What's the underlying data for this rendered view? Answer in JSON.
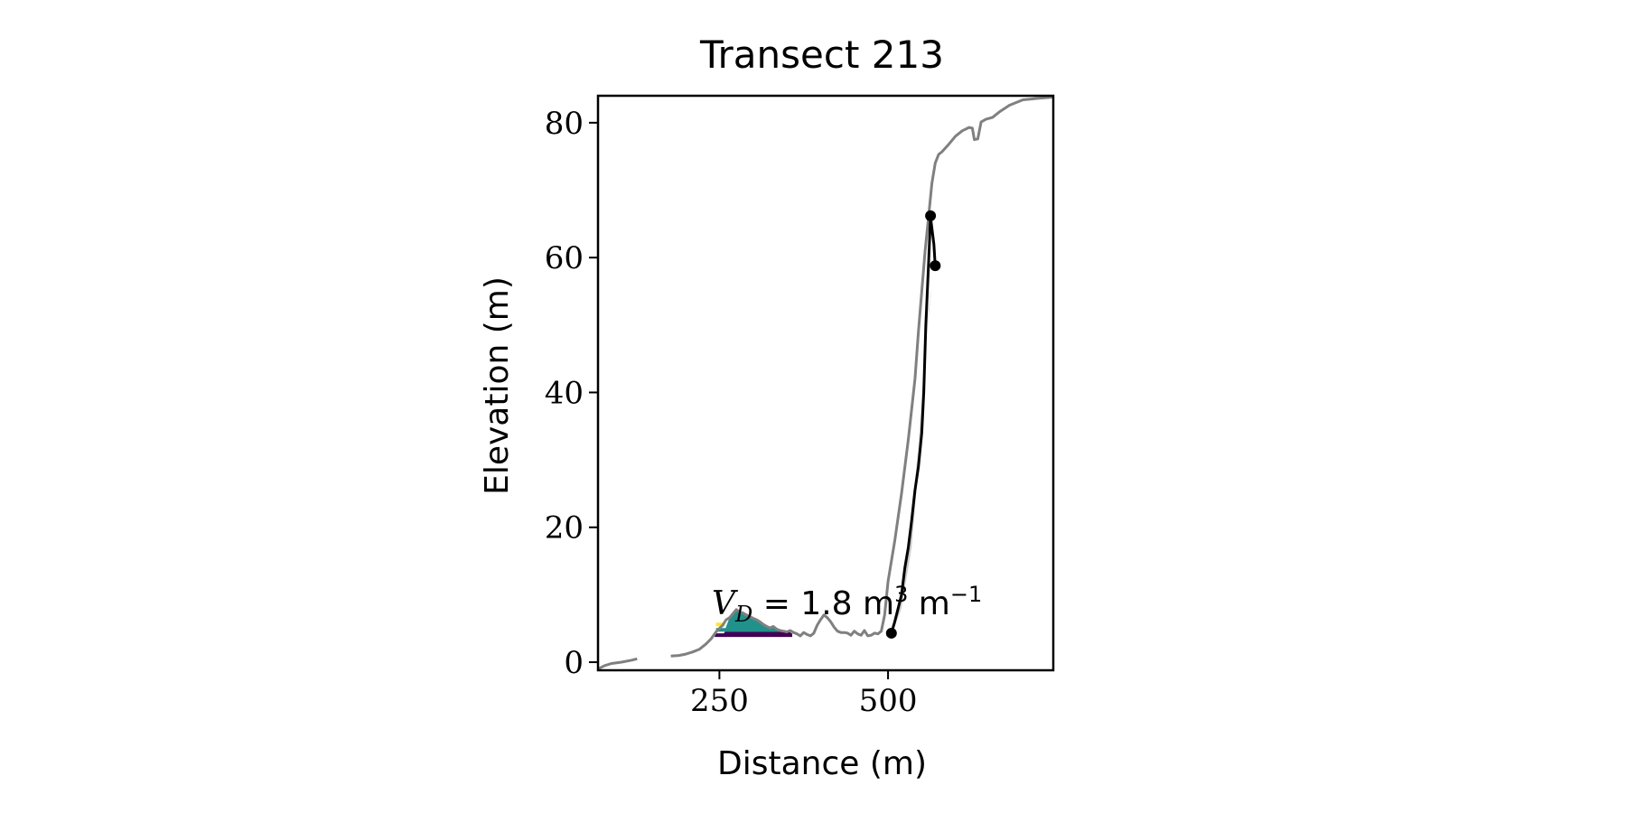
{
  "chart_data": {
    "type": "line",
    "title": "Transect 213",
    "xlabel": "Distance (m)",
    "ylabel": "Elevation (m)",
    "xlim": [
      70,
      745
    ],
    "ylim": [
      -1.2,
      84
    ],
    "xticks": [
      250,
      500
    ],
    "xtick_labels": [
      "250",
      "500"
    ],
    "yticks": [
      0,
      20,
      40,
      60,
      80
    ],
    "ytick_labels": [
      "0",
      "20",
      "40",
      "60",
      "80"
    ],
    "grid": false,
    "legend": "none",
    "annotation": {
      "text_main": "V",
      "text_sub": "D",
      "text_rest": " = 1.8 m",
      "text_sup1": "3",
      "text_m": " m",
      "text_sup2": "−1",
      "x": 243,
      "y": 7
    },
    "profile": {
      "color": "#808080",
      "segments": [
        [
          [
            70,
            -1
          ],
          [
            80,
            -0.5
          ],
          [
            90,
            -0.2
          ],
          [
            105,
            0
          ],
          [
            120,
            0.3
          ],
          [
            128,
            0.5
          ]
        ],
        [
          [
            178,
            0.9
          ],
          [
            190,
            1
          ],
          [
            200,
            1.2
          ],
          [
            210,
            1.5
          ],
          [
            220,
            1.9
          ],
          [
            230,
            2.7
          ],
          [
            238,
            3.5
          ],
          [
            245,
            4.5
          ],
          [
            250,
            5
          ],
          [
            255,
            5.5
          ],
          [
            260,
            6.3
          ],
          [
            265,
            6.6
          ],
          [
            270,
            7.2
          ],
          [
            275,
            7.8
          ],
          [
            280,
            7.4
          ],
          [
            285,
            7.3
          ],
          [
            290,
            7
          ],
          [
            295,
            6.8
          ],
          [
            300,
            6.5
          ],
          [
            305,
            6.3
          ],
          [
            310,
            6
          ],
          [
            315,
            5.6
          ],
          [
            320,
            5.3
          ],
          [
            325,
            5.1
          ],
          [
            330,
            5.3
          ],
          [
            335,
            4.9
          ],
          [
            340,
            4.7
          ],
          [
            345,
            4.6
          ],
          [
            350,
            4.5
          ],
          [
            355,
            4.7
          ],
          [
            360,
            4.4
          ],
          [
            365,
            4.2
          ],
          [
            370,
            3.9
          ],
          [
            375,
            4.4
          ],
          [
            380,
            4.1
          ],
          [
            385,
            3.9
          ],
          [
            390,
            4.3
          ],
          [
            395,
            5.5
          ],
          [
            400,
            6.3
          ],
          [
            405,
            7
          ],
          [
            410,
            6.6
          ],
          [
            415,
            6
          ],
          [
            420,
            5.2
          ],
          [
            425,
            4.6
          ],
          [
            430,
            4.4
          ],
          [
            435,
            4.4
          ],
          [
            440,
            4.3
          ],
          [
            445,
            4
          ],
          [
            450,
            4.6
          ],
          [
            455,
            4.2
          ],
          [
            460,
            4
          ],
          [
            465,
            4.7
          ],
          [
            470,
            3.9
          ],
          [
            475,
            4
          ],
          [
            480,
            4.3
          ],
          [
            485,
            4.2
          ],
          [
            490,
            4.6
          ],
          [
            495,
            7
          ],
          [
            500,
            12
          ],
          [
            510,
            18
          ],
          [
            520,
            25
          ],
          [
            530,
            33
          ],
          [
            540,
            42
          ],
          [
            545,
            49
          ],
          [
            550,
            55
          ],
          [
            555,
            61
          ],
          [
            560,
            66
          ],
          [
            565,
            71
          ],
          [
            570,
            74
          ],
          [
            575,
            75.3
          ],
          [
            580,
            75.7
          ],
          [
            590,
            76.8
          ],
          [
            600,
            78
          ],
          [
            610,
            78.8
          ],
          [
            620,
            79.3
          ],
          [
            625,
            79.2
          ],
          [
            628,
            77.5
          ],
          [
            633,
            77.6
          ],
          [
            638,
            80.1
          ],
          [
            645,
            80.5
          ],
          [
            655,
            80.8
          ],
          [
            665,
            81.6
          ],
          [
            680,
            82.6
          ],
          [
            700,
            83.4
          ],
          [
            720,
            83.6
          ],
          [
            745,
            83.8
          ]
        ]
      ]
    },
    "cliff_fill": {
      "color": "#cccccc",
      "upper": [
        [
          505,
          4
        ],
        [
          520,
          10
        ],
        [
          535,
          22
        ],
        [
          545,
          32
        ],
        [
          555,
          46
        ],
        [
          565,
          56
        ],
        [
          575,
          64
        ]
      ],
      "lower": [
        [
          505,
          4
        ],
        [
          520,
          8
        ],
        [
          535,
          17
        ],
        [
          545,
          29
        ],
        [
          555,
          45
        ],
        [
          560,
          52
        ],
        [
          575,
          64
        ]
      ]
    },
    "cliff_line": {
      "color": "#000000",
      "points": [
        [
          505,
          4.3
        ],
        [
          510,
          6
        ],
        [
          515,
          8
        ],
        [
          520,
          10
        ],
        [
          525,
          14
        ],
        [
          530,
          17
        ],
        [
          535,
          21
        ],
        [
          540,
          25.5
        ],
        [
          545,
          29
        ],
        [
          550,
          34
        ],
        [
          553,
          40
        ],
        [
          556,
          50
        ],
        [
          560,
          59
        ],
        [
          563,
          66
        ],
        [
          568,
          62
        ],
        [
          570,
          58.8
        ]
      ],
      "markers": [
        [
          505,
          4.3
        ],
        [
          563,
          66.2
        ],
        [
          570,
          58.8
        ]
      ]
    },
    "dune_fills": [
      {
        "color": "#440154",
        "y_base": 4,
        "points": [
          [
            255,
            4
          ],
          [
            258,
            4.5
          ],
          [
            270,
            4.5
          ],
          [
            300,
            4.5
          ],
          [
            345,
            4.5
          ],
          [
            355,
            4.5
          ],
          [
            358,
            4
          ]
        ]
      },
      {
        "color": "#21918c",
        "y_base": 4.5,
        "points": [
          [
            258,
            4.5
          ],
          [
            260,
            5.3
          ],
          [
            265,
            6.6
          ],
          [
            270,
            7.2
          ],
          [
            275,
            7.8
          ],
          [
            280,
            7.4
          ],
          [
            285,
            7.3
          ],
          [
            290,
            7
          ],
          [
            295,
            6.8
          ],
          [
            300,
            6.5
          ],
          [
            305,
            6.3
          ],
          [
            310,
            6
          ],
          [
            315,
            5.6
          ],
          [
            320,
            5.3
          ],
          [
            325,
            5.1
          ],
          [
            330,
            5.3
          ],
          [
            335,
            4.9
          ],
          [
            340,
            4.7
          ],
          [
            345,
            4.6
          ],
          [
            350,
            4.5
          ]
        ]
      },
      {
        "color": "#fde725",
        "y_base": 5.5,
        "points": [
          [
            243,
            5.5
          ],
          [
            252,
            5.5
          ]
        ]
      }
    ],
    "level_lines": [
      {
        "color": "#440154",
        "y": 4,
        "x0": 243,
        "x1": 358
      },
      {
        "color": "#21918c",
        "y": 4.8,
        "x0": 245,
        "x1": 302
      },
      {
        "color": "#fde725",
        "y": 5.6,
        "x0": 245,
        "x1": 258
      }
    ]
  }
}
